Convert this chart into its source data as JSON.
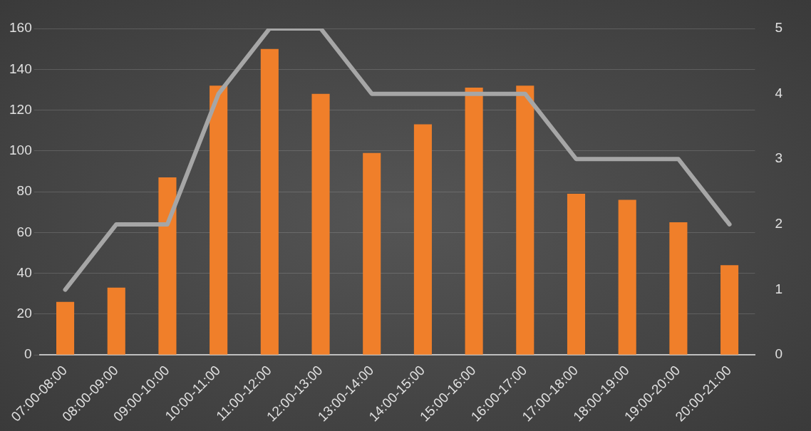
{
  "chart_data": {
    "type": "bar",
    "categories": [
      "07:00-08:00",
      "08:00-09:00",
      "09:00-10:00",
      "10:00-11:00",
      "11:00-12:00",
      "12:00-13:00",
      "13:00-14:00",
      "14:00-15:00",
      "15:00-16:00",
      "16:00-17:00",
      "17:00-18:00",
      "18:00-19:00",
      "19:00-20:00",
      "20:00-21:00"
    ],
    "series": [
      {
        "color": "#f07f2a",
        "values": [
          26,
          33,
          87,
          132,
          150,
          128,
          99,
          113,
          131,
          132,
          79,
          76,
          65,
          44
        ]
      },
      {
        "type": "line",
        "axis": "y2",
        "color": "#a6a6a6",
        "values": [
          1,
          2,
          2,
          4,
          5,
          5,
          4,
          4,
          4,
          4,
          3,
          3,
          3,
          2
        ]
      }
    ],
    "ylim": [
      0,
      160
    ],
    "yticks": [
      0,
      20,
      40,
      60,
      80,
      100,
      120,
      140,
      160
    ],
    "y2lim": [
      0,
      5
    ],
    "y2ticks": [
      0,
      1,
      2,
      3,
      4,
      5
    ],
    "grid": "y",
    "legend": false,
    "marker": "none",
    "line_style": "solid"
  }
}
